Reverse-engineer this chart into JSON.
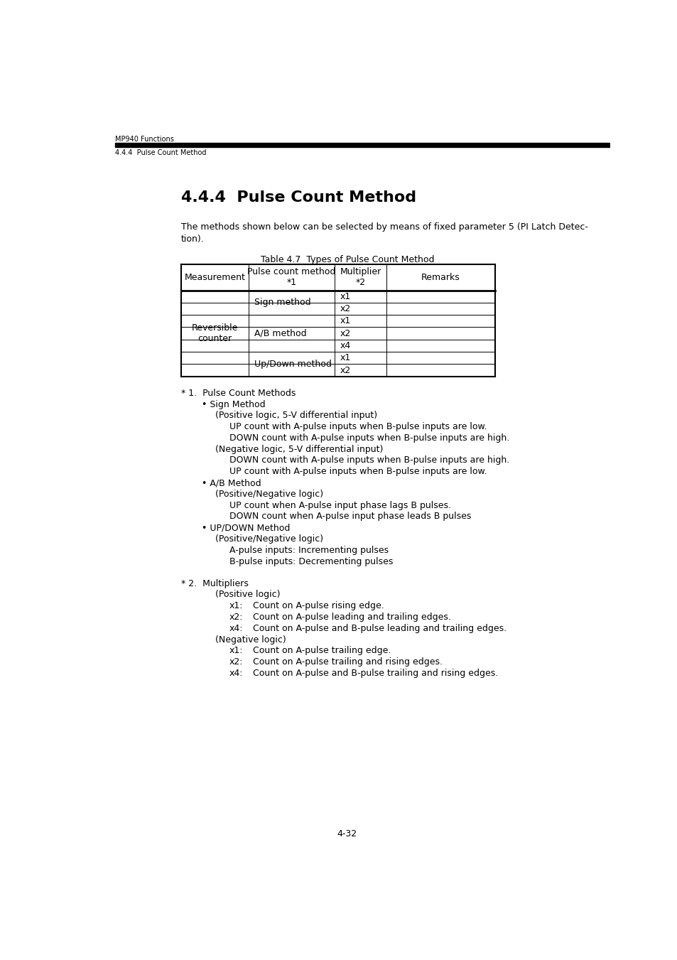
{
  "page_width": 9.54,
  "page_height": 13.51,
  "bg_color": "#ffffff",
  "header_text1": "MP940 Functions",
  "header_text2": "4.4.4  Pulse Count Method",
  "section_title": "4.4.4  Pulse Count Method",
  "table_title": "Table 4.7  Types of Pulse Count Method",
  "table_headers": [
    "Measurement",
    "Pulse count method\n*1",
    "Multiplier\n*2",
    "Remarks"
  ],
  "multipliers": [
    "x1",
    "x2",
    "x1",
    "x2",
    "x4",
    "x1",
    "x2"
  ],
  "footnote_lines": [
    {
      "indent": 0,
      "text": "* 1.  Pulse Count Methods",
      "text2": "",
      "style": "normal"
    },
    {
      "indent": 1,
      "text": "• Sign Method",
      "text2": "",
      "style": "normal"
    },
    {
      "indent": 2,
      "text": "(Positive logic, 5-V differential input)",
      "text2": "",
      "style": "normal"
    },
    {
      "indent": 3,
      "text": "UP count with A-pulse inputs when B-pulse inputs are low.",
      "text2": "",
      "style": "normal"
    },
    {
      "indent": 3,
      "text": "DOWN count with A-pulse inputs when B-pulse inputs are high.",
      "text2": "",
      "style": "normal"
    },
    {
      "indent": 2,
      "text": "(Negative logic, 5-V differential input)",
      "text2": "",
      "style": "normal"
    },
    {
      "indent": 3,
      "text": "DOWN count with A-pulse inputs when B-pulse inputs are high.",
      "text2": "",
      "style": "normal"
    },
    {
      "indent": 3,
      "text": "UP count with A-pulse inputs when B-pulse inputs are low.",
      "text2": "",
      "style": "normal"
    },
    {
      "indent": 1,
      "text": "• A/B Method",
      "text2": "",
      "style": "normal"
    },
    {
      "indent": 2,
      "text": "(Positive/Negative logic)",
      "text2": "",
      "style": "normal"
    },
    {
      "indent": 3,
      "text": "UP count when A-pulse input phase lags B pulses.",
      "text2": "",
      "style": "normal"
    },
    {
      "indent": 3,
      "text": "DOWN count when A-pulse input phase leads B pulses",
      "text2": "",
      "style": "normal"
    },
    {
      "indent": 1,
      "text": "• UP/DOWN Method",
      "text2": "",
      "style": "normal"
    },
    {
      "indent": 2,
      "text": "(Positive/Negative logic)",
      "text2": "",
      "style": "normal"
    },
    {
      "indent": 3,
      "text": "A-pulse inputs: Incrementing pulses",
      "text2": "",
      "style": "normal"
    },
    {
      "indent": 3,
      "text": "B-pulse inputs: Decrementing pulses",
      "text2": "",
      "style": "normal"
    },
    {
      "indent": -1,
      "text": "",
      "text2": "",
      "style": "spacer"
    },
    {
      "indent": 0,
      "text": "* 2.  Multipliers",
      "text2": "",
      "style": "normal"
    },
    {
      "indent": 2,
      "text": "(Positive logic)",
      "text2": "",
      "style": "normal"
    },
    {
      "indent": 4,
      "text": "x1:",
      "text2": "Count on A-pulse rising edge.",
      "style": "tab"
    },
    {
      "indent": 4,
      "text": "x2:",
      "text2": "Count on A-pulse leading and trailing edges.",
      "style": "tab"
    },
    {
      "indent": 4,
      "text": "x4:",
      "text2": "Count on A-pulse and B-pulse leading and trailing edges.",
      "style": "tab"
    },
    {
      "indent": 2,
      "text": "(Negative logic)",
      "text2": "",
      "style": "normal"
    },
    {
      "indent": 4,
      "text": "x1:",
      "text2": "Count on A-pulse trailing edge.",
      "style": "tab"
    },
    {
      "indent": 4,
      "text": "x2:",
      "text2": "Count on A-pulse trailing and rising edges.",
      "style": "tab"
    },
    {
      "indent": 4,
      "text": "x4:",
      "text2": "Count on A-pulse and B-pulse trailing and rising edges.",
      "style": "tab"
    }
  ],
  "page_number": "4-32",
  "font_size_header": 7,
  "font_size_section": 16,
  "font_size_body": 9,
  "font_size_table": 9
}
